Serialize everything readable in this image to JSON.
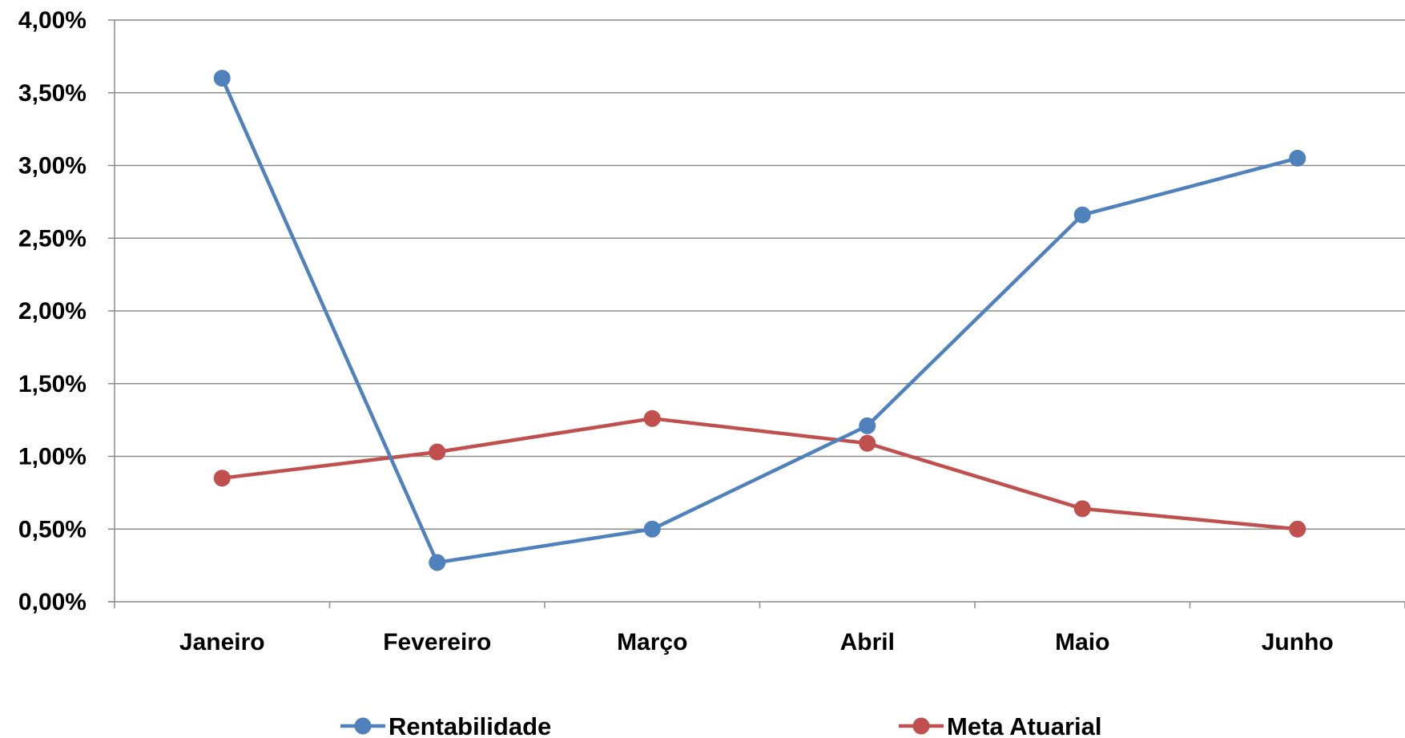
{
  "chart_data": {
    "type": "line",
    "title": "",
    "xlabel": "",
    "ylabel": "",
    "categories": [
      "Janeiro",
      "Fevereiro",
      "Março",
      "Abril",
      "Maio",
      "Junho"
    ],
    "y_ticks": [
      "0,00%",
      "0,50%",
      "1,00%",
      "1,50%",
      "2,00%",
      "2,50%",
      "3,00%",
      "3,50%",
      "4,00%"
    ],
    "ylim": [
      0,
      4
    ],
    "grid": true,
    "legend_position": "bottom",
    "series": [
      {
        "name": "Rentabilidade",
        "color": "#4F81BD",
        "values": [
          3.6,
          0.27,
          0.5,
          1.21,
          2.66,
          3.05
        ]
      },
      {
        "name": "Meta Atuarial",
        "color": "#C0504D",
        "values": [
          0.85,
          1.03,
          1.26,
          1.09,
          0.64,
          0.5
        ]
      }
    ]
  }
}
